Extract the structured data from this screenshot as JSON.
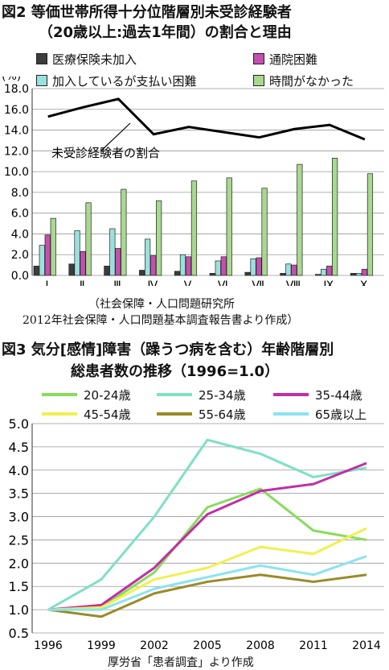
{
  "fig2": {
    "title_line1": "図2 等価世帯所得十分位階層別未受診経験者",
    "title_line2": "（20歳以上:過去1年間）の割合と理由",
    "unit": "(%)",
    "source_line1": "（社会保障・人口問題研究所",
    "source_line2": "2012年社会保障・人口問題基本調査報告書より作成）",
    "annotation": "未受診経験者の割合"
  },
  "fig3": {
    "title_line1": "図3 気分[感情]障害（躁うつ病を含む）年齢階層別",
    "title_line2": "総患者数の推移（1996=1.0）",
    "source": "厚労省「患者調査」より作成"
  },
  "chart_data": [
    {
      "type": "bar",
      "ylim": [
        0,
        18
      ],
      "yticks": [
        "0.0",
        "2.0",
        "4.0",
        "6.0",
        "8.0",
        "10.0",
        "12.0",
        "14.0",
        "16.0",
        "18.0"
      ],
      "categories": [
        "Ⅰ",
        "Ⅱ",
        "Ⅲ",
        "Ⅳ",
        "Ⅴ",
        "Ⅵ",
        "Ⅶ",
        "Ⅷ",
        "Ⅸ",
        "Ⅹ"
      ],
      "series": [
        {
          "name": "医療保険未加入",
          "color": "#3c3c3c",
          "values": [
            0.9,
            1.1,
            0.9,
            0.5,
            0.4,
            0.2,
            0.3,
            0.2,
            0.1,
            0.2
          ]
        },
        {
          "name": "加入しているが支払い困難",
          "color": "#9be0dc",
          "values": [
            2.9,
            4.3,
            4.5,
            3.5,
            2.0,
            1.4,
            1.6,
            1.1,
            0.6,
            0.2
          ]
        },
        {
          "name": "通院困難",
          "color": "#c44fae",
          "values": [
            3.9,
            2.3,
            2.6,
            1.9,
            1.8,
            1.8,
            1.7,
            1.0,
            0.9,
            0.6
          ]
        },
        {
          "name": "時間がなかった",
          "color": "#a8d890",
          "values": [
            5.5,
            7.0,
            8.3,
            7.2,
            9.1,
            9.4,
            8.4,
            10.7,
            11.3,
            9.8
          ]
        }
      ],
      "line": {
        "name": "未受診経験者の割合",
        "color": "#000000",
        "values": [
          15.3,
          16.2,
          17.0,
          13.6,
          14.3,
          13.8,
          13.3,
          14.1,
          14.5,
          13.1
        ]
      },
      "legend": "top"
    },
    {
      "type": "line",
      "x": [
        "1996",
        "1999",
        "2002",
        "2005",
        "2008",
        "2011",
        "2014"
      ],
      "ylim": [
        0.5,
        5.0
      ],
      "yticks": [
        "0.5",
        "1.0",
        "1.5",
        "2.0",
        "2.5",
        "3.0",
        "3.5",
        "4.0",
        "4.5",
        "5.0"
      ],
      "series": [
        {
          "name": "20-24歳",
          "color": "#86dd5a",
          "values": [
            1.0,
            1.05,
            1.8,
            3.2,
            3.6,
            2.7,
            2.5
          ]
        },
        {
          "name": "25-34歳",
          "color": "#7fe0c4",
          "values": [
            1.0,
            1.65,
            3.0,
            4.65,
            4.35,
            3.85,
            4.05
          ]
        },
        {
          "name": "35-44歳",
          "color": "#c22ea6",
          "values": [
            1.0,
            1.1,
            1.9,
            3.05,
            3.55,
            3.7,
            4.15
          ]
        },
        {
          "name": "45-54歳",
          "color": "#f0f050",
          "values": [
            1.0,
            1.05,
            1.65,
            1.9,
            2.35,
            2.2,
            2.75
          ]
        },
        {
          "name": "55-64歳",
          "color": "#9a8a28",
          "values": [
            1.0,
            0.85,
            1.35,
            1.6,
            1.75,
            1.6,
            1.75
          ]
        },
        {
          "name": "65歳以上",
          "color": "#8be4ee",
          "values": [
            1.0,
            1.0,
            1.45,
            1.7,
            1.95,
            1.75,
            2.15
          ]
        }
      ],
      "legend": "top"
    }
  ]
}
